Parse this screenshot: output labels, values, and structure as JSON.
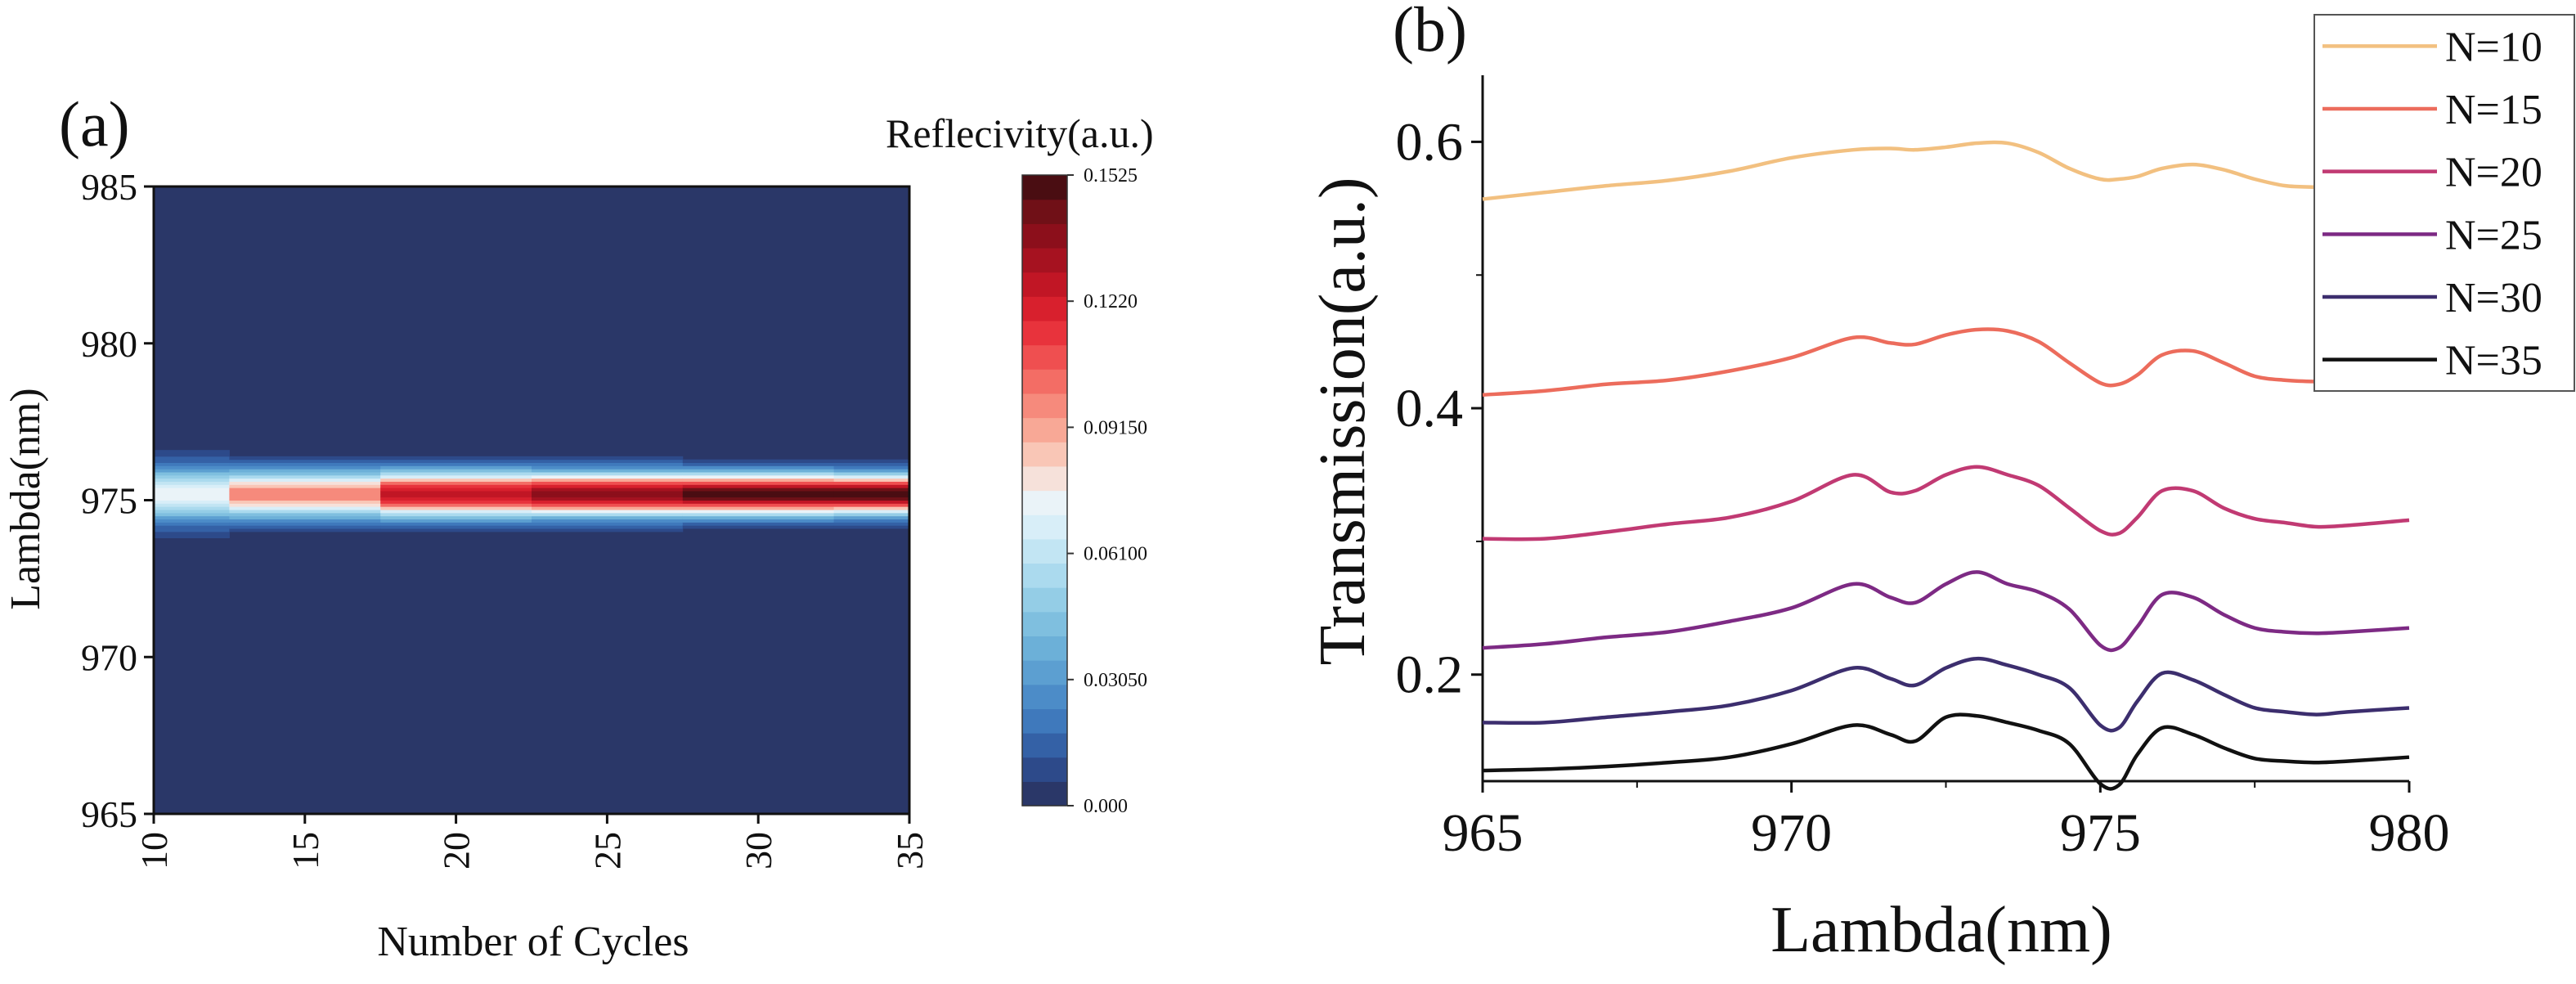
{
  "panel_a": {
    "label": "(a)",
    "xlabel": "Number of Cycles",
    "ylabel": "Lambda(nm)",
    "colorbar_title": "Reflecivity(a.u.)"
  },
  "panel_b": {
    "label": "(b)",
    "xlabel": "Lambda(nm)",
    "ylabel": "Transmission(a.u.)"
  },
  "chart_data": [
    {
      "type": "heatmap",
      "panel": "(a)",
      "title": "",
      "xlabel": "Number of Cycles",
      "ylabel": "Lambda(nm)",
      "xlim": [
        10,
        35
      ],
      "ylim": [
        965,
        985
      ],
      "x_ticks": [
        10,
        15,
        20,
        25,
        30,
        35
      ],
      "y_ticks": [
        965,
        970,
        975,
        980,
        985
      ],
      "colorbar": {
        "title": "Reflecivity(a.u.)",
        "min": 0,
        "max": 0.1525,
        "ticks": [
          "0.000",
          "0.03050",
          "0.06100",
          "0.09150",
          "0.1220",
          "0.1525"
        ],
        "levels": 26,
        "colors": [
          "#2a3768",
          "#2d4a8a",
          "#3461a6",
          "#3f79bc",
          "#4c8cc8",
          "#5c9fd1",
          "#6cb0d8",
          "#7fbfdf",
          "#94cde6",
          "#abdaee",
          "#c2e5f3",
          "#d8eef8",
          "#eaf3f8",
          "#f6e1da",
          "#f9c6b6",
          "#f8a896",
          "#f68a7c",
          "#f36d65",
          "#ef4f50",
          "#e8333c",
          "#d8202d",
          "#c11625",
          "#a61220",
          "#8c0f1b",
          "#701017",
          "#4a0d12"
        ]
      },
      "columns": [
        {
          "x_range": [
            10,
            12.5
          ],
          "peak": 0.074,
          "center": 975.2,
          "width": 1.2
        },
        {
          "x_range": [
            12.5,
            17.5
          ],
          "peak": 0.098,
          "center": 975.2,
          "width": 1.05
        },
        {
          "x_range": [
            17.5,
            22.5
          ],
          "peak": 0.128,
          "center": 975.2,
          "width": 1.0
        },
        {
          "x_range": [
            22.5,
            27.5
          ],
          "peak": 0.141,
          "center": 975.2,
          "width": 0.95
        },
        {
          "x_range": [
            27.5,
            32.5
          ],
          "peak": 0.15,
          "center": 975.2,
          "width": 0.9
        },
        {
          "x_range": [
            32.5,
            35
          ],
          "peak": 0.1525,
          "center": 975.2,
          "width": 0.85
        }
      ]
    },
    {
      "type": "line",
      "panel": "(b)",
      "title": "",
      "xlabel": "Lambda(nm)",
      "ylabel": "Transmission(a.u.)",
      "xlim": [
        965,
        980
      ],
      "ylim": [
        0.12,
        0.65
      ],
      "x_ticks": [
        965,
        970,
        975,
        980
      ],
      "y_ticks": [
        0.2,
        0.4,
        0.6
      ],
      "y_minor_ticks": [
        0.3,
        0.5
      ],
      "legend_position": "top-right",
      "x": [
        965,
        966,
        967,
        968,
        969,
        970,
        971,
        971.6,
        972,
        972.5,
        973,
        973.5,
        974,
        974.5,
        975,
        975.3,
        975.6,
        976,
        976.5,
        977,
        977.5,
        978,
        978.5,
        979,
        980
      ],
      "series": [
        {
          "name": "N=10",
          "color": "#f2c080",
          "values": [
            0.557,
            0.562,
            0.567,
            0.571,
            0.578,
            0.588,
            0.594,
            0.595,
            0.594,
            0.596,
            0.599,
            0.599,
            0.592,
            0.58,
            0.572,
            0.572,
            0.574,
            0.58,
            0.583,
            0.579,
            0.572,
            0.567,
            0.566,
            0.565,
            0.565
          ]
        },
        {
          "name": "N=15",
          "color": "#ec6c5c",
          "values": [
            0.41,
            0.413,
            0.418,
            0.421,
            0.428,
            0.438,
            0.453,
            0.449,
            0.448,
            0.455,
            0.459,
            0.458,
            0.45,
            0.434,
            0.419,
            0.418,
            0.425,
            0.44,
            0.443,
            0.434,
            0.424,
            0.421,
            0.42,
            0.42,
            0.42
          ]
        },
        {
          "name": "N=20",
          "color": "#c13a73",
          "values": [
            0.302,
            0.302,
            0.307,
            0.313,
            0.318,
            0.33,
            0.35,
            0.337,
            0.338,
            0.35,
            0.356,
            0.35,
            0.342,
            0.325,
            0.308,
            0.306,
            0.318,
            0.338,
            0.338,
            0.325,
            0.317,
            0.314,
            0.311,
            0.312,
            0.316
          ]
        },
        {
          "name": "N=25",
          "color": "#7d2a84",
          "values": [
            0.22,
            0.223,
            0.228,
            0.232,
            0.24,
            0.25,
            0.268,
            0.258,
            0.254,
            0.268,
            0.277,
            0.268,
            0.262,
            0.249,
            0.222,
            0.22,
            0.236,
            0.26,
            0.258,
            0.245,
            0.235,
            0.232,
            0.231,
            0.232,
            0.235
          ]
        },
        {
          "name": "N=30",
          "color": "#3c2e6e",
          "values": [
            0.164,
            0.164,
            0.168,
            0.172,
            0.177,
            0.188,
            0.205,
            0.197,
            0.192,
            0.205,
            0.212,
            0.207,
            0.2,
            0.19,
            0.162,
            0.16,
            0.18,
            0.201,
            0.196,
            0.185,
            0.175,
            0.172,
            0.17,
            0.172,
            0.175
          ]
        },
        {
          "name": "N=35",
          "color": "#111111",
          "values": [
            0.128,
            0.129,
            0.131,
            0.134,
            0.138,
            0.148,
            0.162,
            0.155,
            0.15,
            0.168,
            0.169,
            0.164,
            0.158,
            0.148,
            0.118,
            0.117,
            0.14,
            0.16,
            0.155,
            0.145,
            0.137,
            0.135,
            0.134,
            0.135,
            0.138
          ]
        }
      ]
    }
  ]
}
